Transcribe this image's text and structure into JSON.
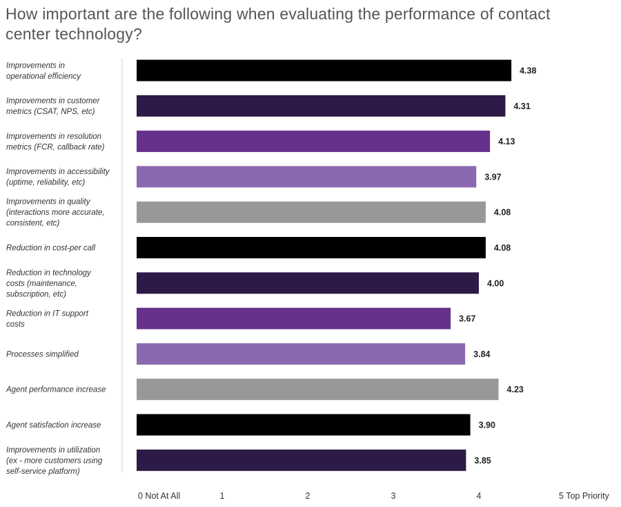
{
  "chart_data": {
    "type": "bar",
    "orientation": "horizontal",
    "title": "How important are the following when evaluating the performance of contact center technology?",
    "categories": [
      [
        "Improvements in",
        "operational efficiency"
      ],
      [
        "Improvements in customer",
        "metrics (CSAT, NPS, etc)"
      ],
      [
        "Improvements in resolution",
        "metrics (FCR, callback rate)"
      ],
      [
        "Improvements in accessibility",
        "(uptime, reliability, etc)"
      ],
      [
        "Improvements in quality",
        "(interactions more accurate,",
        "consistent, etc)"
      ],
      [
        "Reduction in cost-per call"
      ],
      [
        "Reduction in technology",
        "costs (maintenance,",
        "subscription, etc)"
      ],
      [
        "Reduction in IT support",
        "costs"
      ],
      [
        "Processes simplified"
      ],
      [
        "Agent performance increase"
      ],
      [
        "Agent satisfaction increase"
      ],
      [
        "Improvements in utilization",
        "(ex - more customers using",
        "self-service platform)"
      ]
    ],
    "values": [
      4.38,
      4.31,
      4.13,
      3.97,
      4.08,
      4.08,
      4.0,
      3.67,
      3.84,
      4.23,
      3.9,
      3.85
    ],
    "value_labels": [
      "4.38",
      "4.31",
      "4.13",
      "3.97",
      "4.08",
      "4.08",
      "4.00",
      "3.67",
      "3.84",
      "4.23",
      "3.90",
      "3.85"
    ],
    "colors": [
      "#000000",
      "#2e1a47",
      "#65318b",
      "#8b69b0",
      "#98989b",
      "#000000",
      "#2e1a47",
      "#65318b",
      "#8b69b0",
      "#98989b",
      "#000000",
      "#2e1a47"
    ],
    "xlim": [
      0,
      5
    ],
    "xticks": [
      0,
      1,
      2,
      3,
      4,
      5
    ],
    "xtick_labels": [
      "0 Not At All",
      "1",
      "2",
      "3",
      "4",
      "5 Top Priority"
    ],
    "grid": false,
    "axis_color": "#d0d0d0"
  }
}
